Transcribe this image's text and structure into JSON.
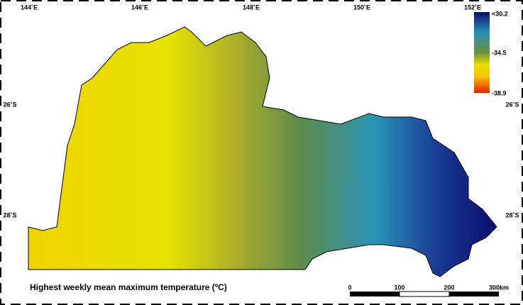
{
  "map": {
    "title": "Highest weekly mean maximum temperature (ºC)",
    "longitude_labels": [
      "144˚E",
      "146˚E",
      "148˚E",
      "150˚E",
      "152˚E"
    ],
    "latitude_labels_left": [
      "26˚S",
      "28˚S"
    ],
    "latitude_labels_right": [
      "26˚S",
      "28˚S"
    ],
    "legend": {
      "labels": [
        "<30.2",
        "-34.5",
        "-38.9"
      ]
    },
    "scale_bar": {
      "labels": [
        "0",
        "100",
        "200",
        "300km"
      ]
    }
  }
}
